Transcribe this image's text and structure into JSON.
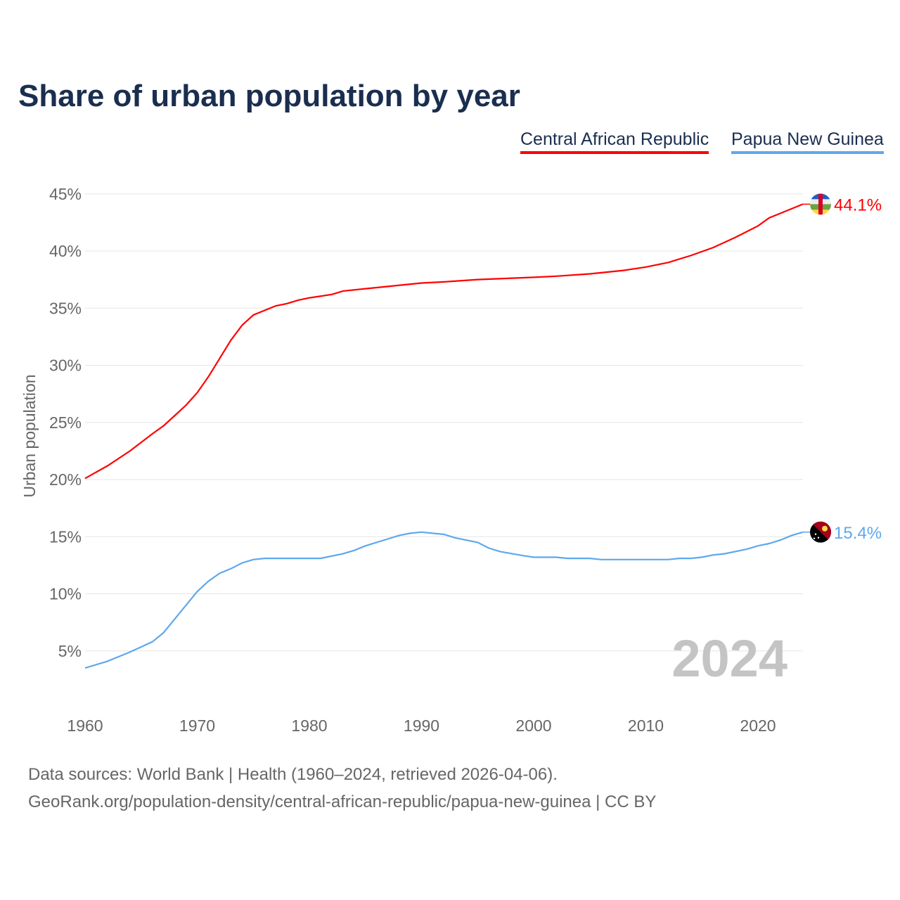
{
  "chart_data": {
    "type": "line",
    "title": "Share of urban population by year",
    "ylabel": "Urban population",
    "xlabel": "",
    "xlim": [
      1960,
      2024
    ],
    "ylim": [
      0,
      45
    ],
    "x_ticks": [
      "1960",
      "1970",
      "1980",
      "1990",
      "2000",
      "2010",
      "2020"
    ],
    "y_ticks": [
      "5%",
      "10%",
      "15%",
      "20%",
      "25%",
      "30%",
      "35%",
      "40%",
      "45%"
    ],
    "y_tick_values": [
      5,
      10,
      15,
      20,
      25,
      30,
      35,
      40,
      45
    ],
    "x_tick_values": [
      1960,
      1970,
      1980,
      1990,
      2000,
      2010,
      2020
    ],
    "grid": true,
    "legend_position": "top-right",
    "year_watermark": "2024",
    "series": [
      {
        "name": "Central African Republic",
        "color": "#ff0000",
        "end_label": "44.1%",
        "x": [
          1960,
          1962,
          1964,
          1966,
          1967,
          1968,
          1969,
          1970,
          1971,
          1972,
          1973,
          1974,
          1975,
          1976,
          1977,
          1978,
          1979,
          1980,
          1982,
          1983,
          1985,
          1990,
          1992,
          1995,
          2000,
          2002,
          2005,
          2008,
          2010,
          2012,
          2014,
          2016,
          2018,
          2020,
          2021,
          2022,
          2024
        ],
        "values": [
          20.1,
          21.2,
          22.5,
          24.0,
          24.7,
          25.6,
          26.5,
          27.6,
          29.0,
          30.6,
          32.2,
          33.5,
          34.4,
          34.8,
          35.2,
          35.4,
          35.7,
          35.9,
          36.2,
          36.5,
          36.7,
          37.2,
          37.3,
          37.5,
          37.7,
          37.8,
          38.0,
          38.3,
          38.6,
          39.0,
          39.6,
          40.3,
          41.2,
          42.2,
          42.9,
          43.3,
          44.1
        ]
      },
      {
        "name": "Papua New Guinea",
        "color": "#5ea8ec",
        "end_label": "15.4%",
        "x": [
          1960,
          1962,
          1964,
          1966,
          1967,
          1968,
          1969,
          1970,
          1971,
          1972,
          1973,
          1974,
          1975,
          1976,
          1981,
          1983,
          1984,
          1985,
          1987,
          1988,
          1989,
          1990,
          1992,
          1993,
          1995,
          1996,
          1997,
          1999,
          2000,
          2002,
          2003,
          2005,
          2006,
          2012,
          2013,
          2014,
          2015,
          2016,
          2017,
          2019,
          2020,
          2021,
          2022,
          2023,
          2024
        ],
        "values": [
          3.5,
          4.1,
          4.9,
          5.8,
          6.6,
          7.8,
          9.0,
          10.2,
          11.1,
          11.8,
          12.2,
          12.7,
          13.0,
          13.1,
          13.1,
          13.5,
          13.8,
          14.2,
          14.8,
          15.1,
          15.3,
          15.4,
          15.2,
          14.9,
          14.5,
          14.0,
          13.7,
          13.35,
          13.2,
          13.2,
          13.1,
          13.1,
          13.0,
          13.0,
          13.1,
          13.1,
          13.2,
          13.4,
          13.5,
          13.9,
          14.2,
          14.4,
          14.7,
          15.1,
          15.4
        ]
      }
    ]
  },
  "footer": {
    "line1": "Data sources: World Bank | Health (1960–2024, retrieved 2026-04-06).",
    "line2": "GeoRank.org/population-density/central-african-republic/papua-new-guinea | CC BY"
  }
}
